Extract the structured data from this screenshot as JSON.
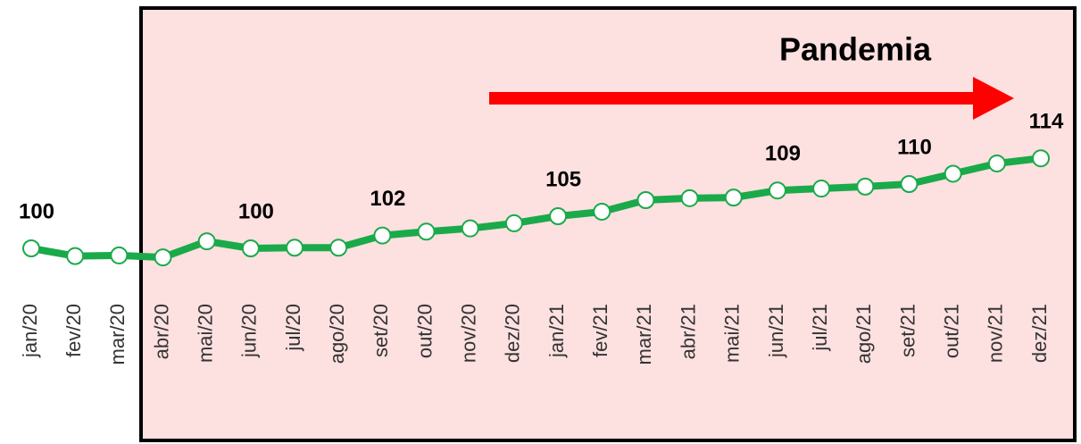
{
  "chart_data": {
    "type": "line",
    "annotation": "Pandemia",
    "categories": [
      "jan/20",
      "fev/20",
      "mar/20",
      "abr/20",
      "mai/20",
      "jun/20",
      "jul/20",
      "ago/20",
      "set/20",
      "out/20",
      "nov/20",
      "dez/20",
      "jan/21",
      "fev/21",
      "mar/21",
      "abr/21",
      "mai/21",
      "jun/21",
      "jul/21",
      "ago/21",
      "set/21",
      "out/21",
      "nov/21",
      "dez/21"
    ],
    "series": [
      {
        "color": "#1aaa4a",
        "values": [
          100,
          98.8,
          98.9,
          98.6,
          101.1,
          100,
          100.1,
          100.1,
          102,
          102.6,
          103.1,
          103.9,
          105,
          105.7,
          107.5,
          107.8,
          107.9,
          109,
          109.3,
          109.6,
          110,
          111.6,
          113.2,
          114
        ],
        "value_labels": [
          "100",
          null,
          null,
          null,
          null,
          "100",
          null,
          null,
          "102",
          null,
          null,
          null,
          "105",
          null,
          null,
          null,
          null,
          "109",
          null,
          null,
          "110",
          null,
          null,
          "114"
        ]
      }
    ],
    "ylim": [
      95,
      116
    ]
  }
}
